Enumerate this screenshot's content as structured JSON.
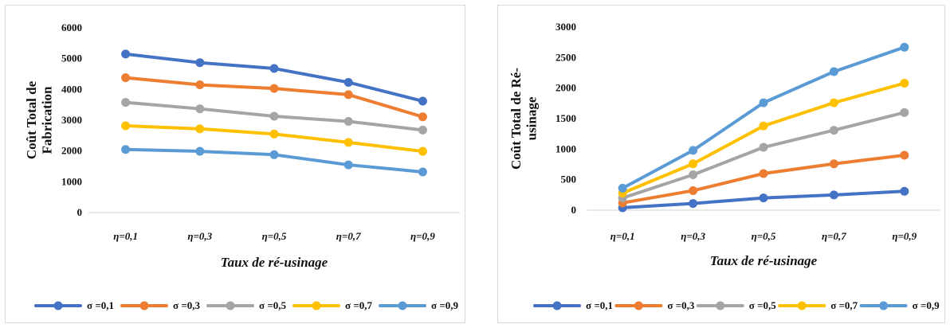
{
  "chart_data": [
    {
      "type": "line",
      "ylabel_lines": [
        "Coût Total de",
        "Fabrication"
      ],
      "xlabel": "Taux de ré-usinage",
      "categories": [
        "η=0,1",
        "η=0,3",
        "η=0,5",
        "η=0,7",
        "η=0,9"
      ],
      "yticks": [
        "0",
        "1000",
        "2000",
        "3000",
        "4000",
        "5000",
        "6000"
      ],
      "ylim": [
        0,
        6000
      ],
      "grid": false,
      "legend_position": "bottom",
      "series": [
        {
          "name": "σ =0,1",
          "color": "#4472C4",
          "values": [
            5150,
            4870,
            4680,
            4230,
            3620
          ]
        },
        {
          "name": "σ =0,3",
          "color": "#ED7D31",
          "values": [
            4380,
            4150,
            4030,
            3830,
            3110
          ]
        },
        {
          "name": "σ =0,5",
          "color": "#A5A5A5",
          "values": [
            3580,
            3370,
            3130,
            2960,
            2680
          ]
        },
        {
          "name": "σ =0,7",
          "color": "#FFC000",
          "values": [
            2820,
            2720,
            2550,
            2280,
            1990
          ]
        },
        {
          "name": "σ =0,9",
          "color": "#5B9BD5",
          "values": [
            2050,
            1990,
            1880,
            1550,
            1320
          ]
        }
      ]
    },
    {
      "type": "line",
      "ylabel_lines": [
        "Coût Total de Ré-",
        "usinage"
      ],
      "xlabel": "Taux de ré-usinage",
      "categories": [
        "η=0,1",
        "η=0,3",
        "η=0,5",
        "η=0,7",
        "η=0,9"
      ],
      "yticks": [
        "0",
        "500",
        "1000",
        "1500",
        "2000",
        "2500",
        "3000"
      ],
      "ylim": [
        0,
        3000
      ],
      "grid": false,
      "legend_position": "bottom",
      "series": [
        {
          "name": "σ =0,1",
          "color": "#4472C4",
          "values": [
            40,
            110,
            200,
            250,
            310
          ]
        },
        {
          "name": "σ =0,3",
          "color": "#ED7D31",
          "values": [
            120,
            320,
            600,
            760,
            900
          ]
        },
        {
          "name": "σ =0,5",
          "color": "#A5A5A5",
          "values": [
            200,
            580,
            1030,
            1310,
            1600
          ]
        },
        {
          "name": "σ =0,7",
          "color": "#FFC000",
          "values": [
            280,
            760,
            1380,
            1760,
            2080
          ]
        },
        {
          "name": "σ =0,9",
          "color": "#5B9BD5",
          "values": [
            360,
            980,
            1760,
            2270,
            2670
          ]
        }
      ]
    }
  ]
}
